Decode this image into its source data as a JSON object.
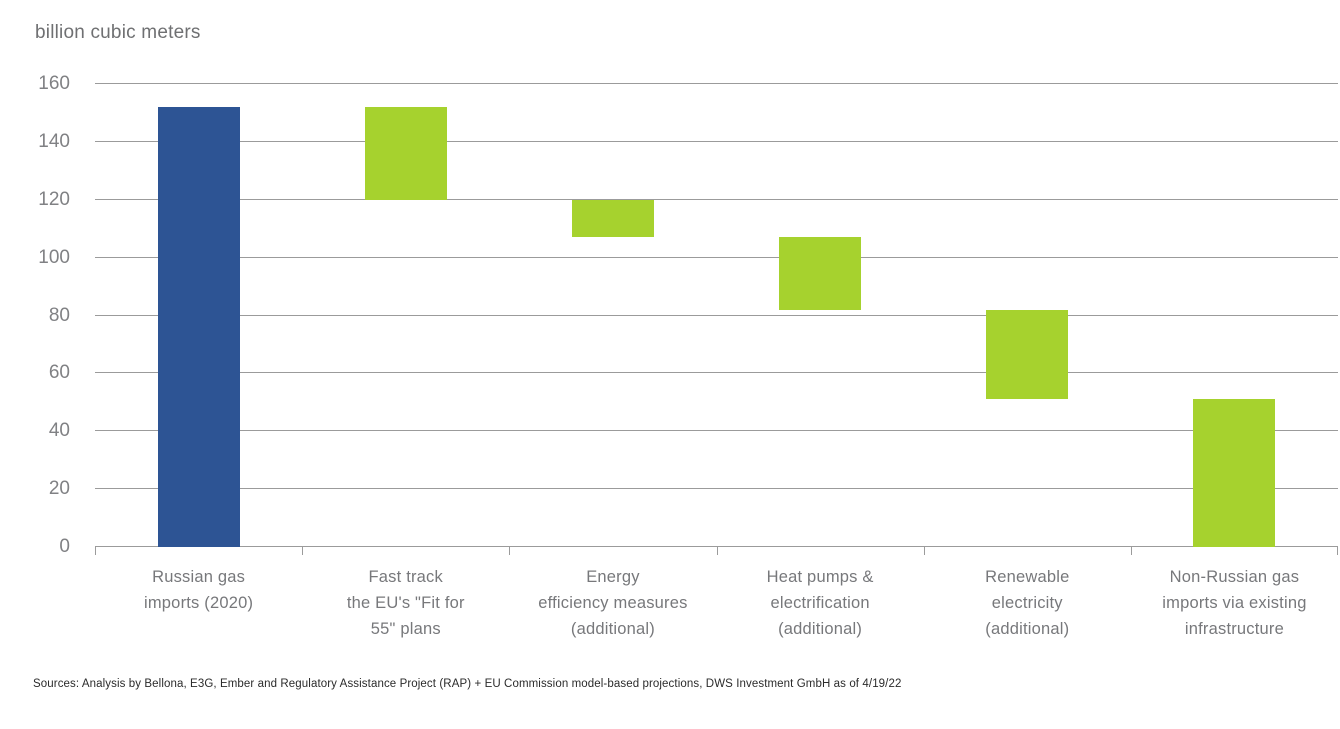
{
  "chart_data": {
    "type": "bar",
    "subtype": "waterfall",
    "title": "billion cubic meters",
    "ylabel": "billion cubic meters",
    "xlabel": "",
    "ylim": [
      0,
      160
    ],
    "yticks": [
      0,
      20,
      40,
      60,
      80,
      100,
      120,
      140,
      160
    ],
    "grid": true,
    "legend": "none",
    "colors": {
      "initial_bar": "#2d5494",
      "decrement_bar": "#a6d22e",
      "gridline": "#9b9b9b",
      "tick_text": "#808184",
      "label_text": "#77787b"
    },
    "categories": [
      "Russian gas\nimports (2020)",
      "Fast track\nthe EU's \"Fit for\n55\" plans",
      "Energy\nefficiency measures\n(additional)",
      "Heat pumps &\nelectrification\n(additional)",
      "Renewable\nelectricity\n(additional)",
      "Non-Russian gas\nimports via existing\ninfrastructure"
    ],
    "bars": [
      {
        "category": "Russian gas imports (2020)",
        "start": 0,
        "end": 152,
        "change": 152,
        "color": "#2d5494"
      },
      {
        "category": "Fast track the EU's \"Fit for 55\" plans",
        "start": 120,
        "end": 152,
        "change": -32,
        "color": "#a6d22e"
      },
      {
        "category": "Energy efficiency measures (additional)",
        "start": 107,
        "end": 120,
        "change": -13,
        "color": "#a6d22e"
      },
      {
        "category": "Heat pumps & electrification (additional)",
        "start": 82,
        "end": 107,
        "change": -25,
        "color": "#a6d22e"
      },
      {
        "category": "Renewable electricity (additional)",
        "start": 51,
        "end": 82,
        "change": -31,
        "color": "#a6d22e"
      },
      {
        "category": "Non-Russian gas imports via existing infrastructure",
        "start": 0,
        "end": 51,
        "change": -51,
        "color": "#a6d22e"
      }
    ],
    "source_note": "Sources: Analysis by Bellona, E3G, Ember and Regulatory Assistance Project (RAP) + EU Commission model-based projections, DWS Investment GmbH as of 4/19/22"
  }
}
